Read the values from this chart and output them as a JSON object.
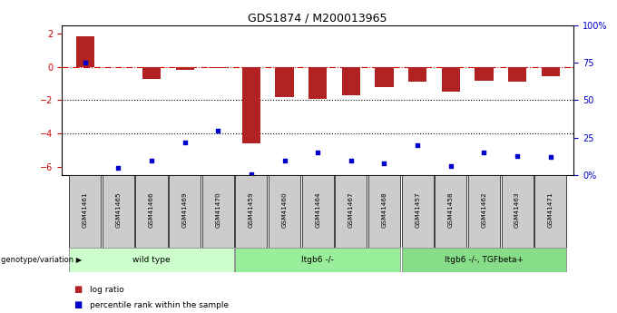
{
  "title": "GDS1874 / M200013965",
  "samples": [
    "GSM41461",
    "GSM41465",
    "GSM41466",
    "GSM41469",
    "GSM41470",
    "GSM41459",
    "GSM41460",
    "GSM41464",
    "GSM41467",
    "GSM41468",
    "GSM41457",
    "GSM41458",
    "GSM41462",
    "GSM41463",
    "GSM41471"
  ],
  "log_ratio": [
    1.85,
    0.0,
    -0.75,
    -0.2,
    -0.1,
    -4.6,
    -1.8,
    -1.9,
    -1.7,
    -1.2,
    -0.9,
    -1.5,
    -0.85,
    -0.9,
    -0.55
  ],
  "percentile_rank": [
    75,
    5,
    10,
    22,
    30,
    1,
    10,
    15,
    10,
    8,
    20,
    6,
    15,
    13,
    12
  ],
  "bar_color": "#b22222",
  "dot_color": "#0000cc",
  "groups": [
    {
      "label": "wild type",
      "start": 0,
      "end": 5,
      "color": "#ccffcc"
    },
    {
      "label": "ltgb6 -/-",
      "start": 5,
      "end": 10,
      "color": "#99ee99"
    },
    {
      "label": "ltgb6 -/-, TGFbeta+",
      "start": 10,
      "end": 15,
      "color": "#88dd88"
    }
  ],
  "ylim_left": [
    -6.5,
    2.5
  ],
  "ylim_right": [
    0,
    100
  ],
  "yticks_left": [
    2,
    0,
    -2,
    -4,
    -6
  ],
  "yticks_right": [
    0,
    25,
    50,
    75,
    100
  ],
  "ytick_labels_right": [
    "0%",
    "25",
    "50",
    "75",
    "100%"
  ],
  "zero_line_color": "#cc0000",
  "grid_color": "#000000",
  "legend_log_ratio": "log ratio",
  "legend_percentile": "percentile rank within the sample",
  "genotype_label": "genotype/variation"
}
